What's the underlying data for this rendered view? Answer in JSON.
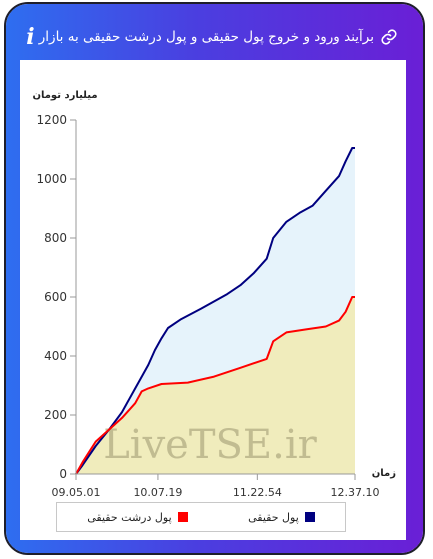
{
  "header": {
    "title": "برآیند ورود و خروج پول حقیقی و پول درشت حقیقی به بازار",
    "info_glyph": "i"
  },
  "watermark": "LiveTSE.ir",
  "chart_data": {
    "type": "line",
    "ylabel": "میلیارد تومان",
    "xlabel": "زمان",
    "ylim": [
      0,
      1200
    ],
    "yticks": [
      0,
      200,
      400,
      600,
      800,
      1000,
      1200
    ],
    "xticks": [
      "09.05.01",
      "10.07.19",
      "11.22.54",
      "12.37.10"
    ],
    "xrange": [
      "09.05.01",
      "12.37.10"
    ],
    "grid": false,
    "legend_position": "bottom",
    "series": [
      {
        "name": "پول حقیقی",
        "color": "#000080",
        "fill": "#e6f3fb",
        "points": [
          [
            "09.05.01",
            0
          ],
          [
            "09.10.00",
            30
          ],
          [
            "09.20.00",
            95
          ],
          [
            "09.30.00",
            150
          ],
          [
            "09.40.00",
            210
          ],
          [
            "09.50.00",
            290
          ],
          [
            "10.00.00",
            370
          ],
          [
            "10.05.00",
            420
          ],
          [
            "10.10.00",
            460
          ],
          [
            "10.15.00",
            495
          ],
          [
            "10.25.00",
            525
          ],
          [
            "10.40.00",
            560
          ],
          [
            "11.00.00",
            610
          ],
          [
            "11.10.00",
            640
          ],
          [
            "11.20.00",
            680
          ],
          [
            "11.30.00",
            730
          ],
          [
            "11.35.00",
            800
          ],
          [
            "11.45.00",
            855
          ],
          [
            "11.55.00",
            885
          ],
          [
            "12.05.00",
            910
          ],
          [
            "12.15.00",
            960
          ],
          [
            "12.25.00",
            1010
          ],
          [
            "12.30.00",
            1060
          ],
          [
            "12.35.00",
            1105
          ],
          [
            "12.37.10",
            1105
          ]
        ]
      },
      {
        "name": "پول درشت حقیقی",
        "color": "#ff0000",
        "fill": "#f0ecbc",
        "points": [
          [
            "09.05.01",
            0
          ],
          [
            "09.10.00",
            40
          ],
          [
            "09.20.00",
            110
          ],
          [
            "09.30.00",
            150
          ],
          [
            "09.40.00",
            190
          ],
          [
            "09.50.00",
            240
          ],
          [
            "09.55.00",
            280
          ],
          [
            "10.00.00",
            290
          ],
          [
            "10.10.00",
            305
          ],
          [
            "10.30.00",
            310
          ],
          [
            "10.50.00",
            330
          ],
          [
            "11.10.00",
            360
          ],
          [
            "11.30.00",
            390
          ],
          [
            "11.35.00",
            450
          ],
          [
            "11.45.00",
            480
          ],
          [
            "12.00.00",
            490
          ],
          [
            "12.15.00",
            500
          ],
          [
            "12.25.00",
            520
          ],
          [
            "12.30.00",
            550
          ],
          [
            "12.35.00",
            600
          ],
          [
            "12.37.10",
            600
          ]
        ]
      }
    ]
  }
}
